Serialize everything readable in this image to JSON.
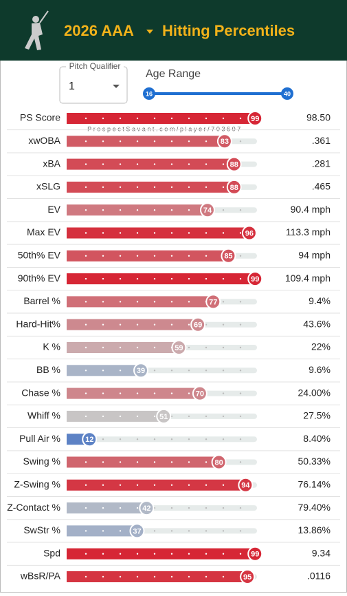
{
  "header": {
    "title": "2026 AAA",
    "subtitle": "Hitting Percentiles"
  },
  "controls": {
    "pitch_qualifier_label": "Pitch Qualifier",
    "pitch_qualifier_value": "1",
    "age_range_label": "Age Range",
    "age_min": 16,
    "age_max": 40
  },
  "watermark": "ProspectSavant.com/player/703607",
  "chart_data": {
    "type": "bar",
    "orientation": "horizontal",
    "xlim": [
      0,
      100
    ],
    "categories": [
      "PS Score",
      "xwOBA",
      "xBA",
      "xSLG",
      "EV",
      "Max EV",
      "50th% EV",
      "90th% EV",
      "Barrel %",
      "Hard-Hit%",
      "K %",
      "BB %",
      "Chase %",
      "Whiff %",
      "Pull Air %",
      "Swing %",
      "Z-Swing %",
      "Z-Contact %",
      "SwStr %",
      "Spd",
      "wBsR/PA"
    ],
    "values": [
      99,
      83,
      88,
      88,
      74,
      96,
      85,
      99,
      77,
      69,
      59,
      39,
      70,
      51,
      12,
      80,
      94,
      42,
      37,
      99,
      95
    ],
    "stats": [
      "98.50",
      ".361",
      ".281",
      ".465",
      "90.4 mph",
      "113.3 mph",
      "94 mph",
      "109.4 mph",
      "9.4%",
      "43.6%",
      "22%",
      "9.6%",
      "24.00%",
      "27.5%",
      "8.40%",
      "50.33%",
      "76.14%",
      "79.40%",
      "13.86%",
      "9.34",
      ".0116"
    ]
  }
}
